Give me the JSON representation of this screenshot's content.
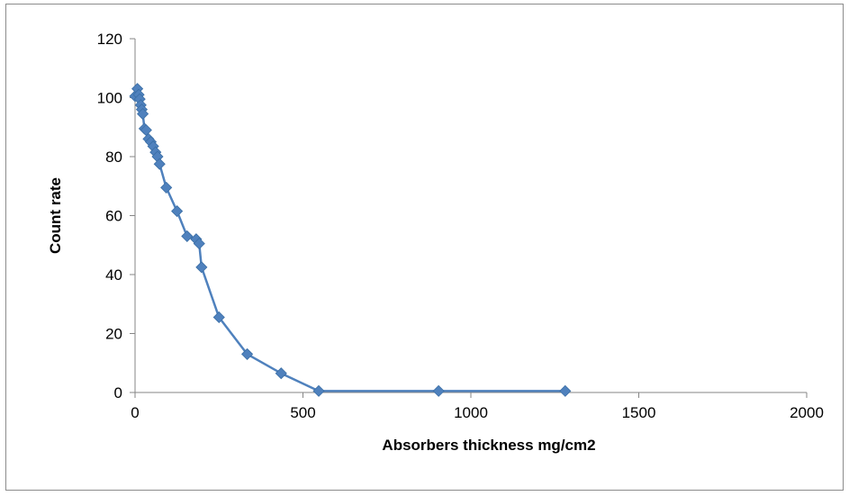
{
  "chart_data": {
    "type": "scatter",
    "title": "",
    "xlabel": "Absorbers thickness mg/cm2",
    "ylabel": "Count rate",
    "xlim": [
      0,
      2000
    ],
    "ylim": [
      0,
      120
    ],
    "x_ticks": [
      "0",
      "500",
      "1000",
      "1500",
      "2000"
    ],
    "y_ticks": [
      "0",
      "20",
      "40",
      "60",
      "80",
      "100",
      "120"
    ],
    "grid": false,
    "legend": "none",
    "series": [
      {
        "color": "#4f81bd",
        "marker": "diamond",
        "line": true,
        "x": [
          0,
          7,
          11,
          14,
          17,
          20,
          23,
          28,
          33,
          40,
          47,
          54,
          61,
          67,
          73,
          93,
          125,
          155,
          182,
          191,
          198,
          250,
          334,
          435,
          547,
          904,
          1281
        ],
        "y": [
          100.5,
          103,
          101,
          99.5,
          97.5,
          96,
          94.5,
          89.5,
          89,
          86,
          85,
          83.5,
          81.5,
          80,
          77.5,
          69.5,
          61.5,
          53,
          52,
          50.5,
          42.5,
          25.5,
          13,
          6.5,
          0.5,
          0.5,
          0.5
        ]
      }
    ]
  }
}
